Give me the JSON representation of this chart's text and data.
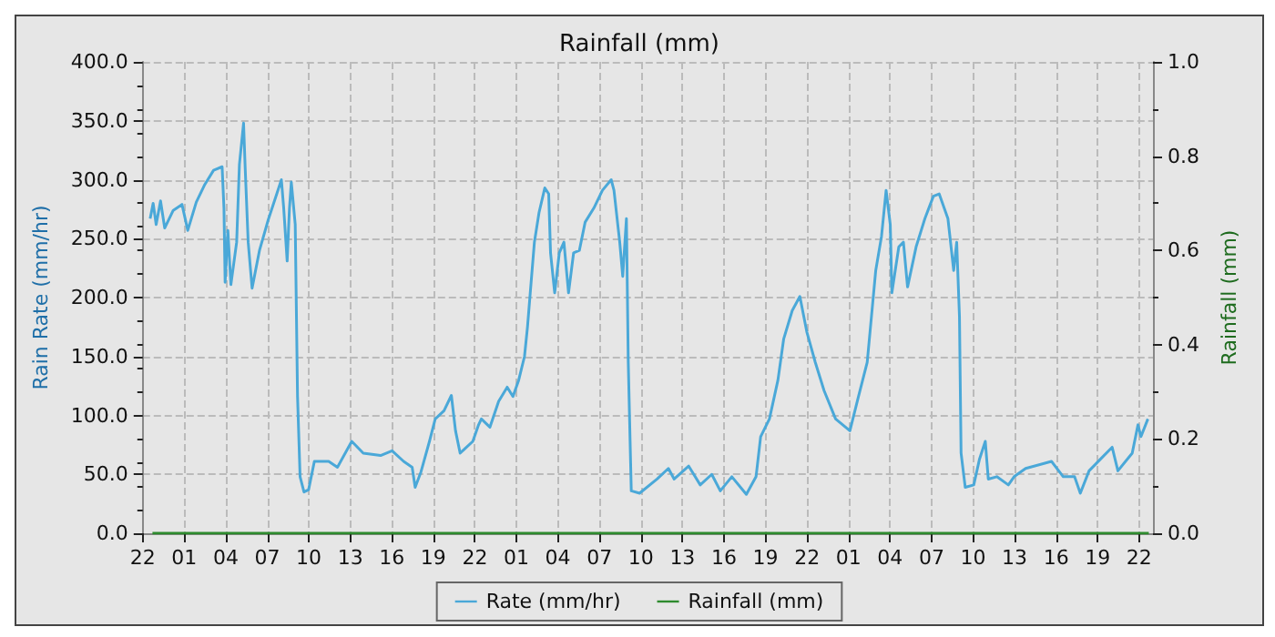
{
  "chart_data": {
    "type": "line",
    "title": "Rainfall (mm)",
    "ylabel": "Rain Rate (mm/hr)",
    "y2label": "Rainfall (mm)",
    "xlim": [
      "--01-01T22:00",
      "--01-04T23:00"
    ],
    "xticks": [
      {
        "value": "--01-01T22:00",
        "label": "22"
      },
      {
        "value": "--01-02T01:00",
        "label": "01"
      },
      {
        "value": "--01-02T04:00",
        "label": "04"
      },
      {
        "value": "--01-02T07:00",
        "label": "07"
      },
      {
        "value": "--01-02T10:00",
        "label": "10"
      },
      {
        "value": "--01-02T13:00",
        "label": "13"
      },
      {
        "value": "--01-02T16:00",
        "label": "16"
      },
      {
        "value": "--01-02T19:00",
        "label": "19"
      },
      {
        "value": "--01-02T22:00",
        "label": "22"
      },
      {
        "value": "--01-03T01:00",
        "label": "01"
      },
      {
        "value": "--01-03T04:00",
        "label": "04"
      },
      {
        "value": "--01-03T07:00",
        "label": "07"
      },
      {
        "value": "--01-03T10:00",
        "label": "10"
      },
      {
        "value": "--01-03T13:00",
        "label": "13"
      },
      {
        "value": "--01-03T16:00",
        "label": "16"
      },
      {
        "value": "--01-03T19:00",
        "label": "19"
      },
      {
        "value": "--01-03T22:00",
        "label": "22"
      },
      {
        "value": "--01-04T01:00",
        "label": "01"
      },
      {
        "value": "--01-04T04:00",
        "label": "04"
      },
      {
        "value": "--01-04T07:00",
        "label": "07"
      },
      {
        "value": "--01-04T10:00",
        "label": "10"
      },
      {
        "value": "--01-04T13:00",
        "label": "13"
      },
      {
        "value": "--01-04T16:00",
        "label": "16"
      },
      {
        "value": "--01-04T19:00",
        "label": "19"
      },
      {
        "value": "--01-04T22:00",
        "label": "22"
      }
    ],
    "ylim": [
      0,
      400
    ],
    "yticks": [
      {
        "value": 0,
        "label": "0.0"
      },
      {
        "value": 50,
        "label": "50.0"
      },
      {
        "value": 100,
        "label": "100.0"
      },
      {
        "value": 150,
        "label": "150.0"
      },
      {
        "value": 200,
        "label": "200.0"
      },
      {
        "value": 250,
        "label": "250.0"
      },
      {
        "value": 300,
        "label": "300.0"
      },
      {
        "value": 350,
        "label": "350.0"
      },
      {
        "value": 400,
        "label": "400.0"
      }
    ],
    "y2lim": [
      0,
      1
    ],
    "y2ticks": [
      {
        "value": 0,
        "label": "0.0"
      },
      {
        "value": 0.2,
        "label": "0.2"
      },
      {
        "value": 0.4,
        "label": "0.4"
      },
      {
        "value": 0.6,
        "label": "0.6"
      },
      {
        "value": 0.8,
        "label": "0.8"
      },
      {
        "value": 1,
        "label": "1.0"
      }
    ],
    "grid": true,
    "legend": "bottom",
    "marker": "none",
    "line_style": "solid",
    "series": [
      {
        "name": "Rate (mm/hr)",
        "color": "#4aa8d8",
        "x": [
          "--01-01T22:32",
          "--01-01T22:45",
          "--01-01T22:58",
          "--01-01T23:17",
          "--01-01T23:35",
          "--01-02T00:12",
          "--01-02T00:50",
          "--01-02T01:15",
          "--01-02T01:52",
          "--01-02T02:29",
          "--01-02T03:07",
          "--01-02T03:44",
          "--01-02T03:52",
          "--01-02T03:57",
          "--01-02T04:09",
          "--01-02T04:22",
          "--01-02T04:47",
          "--01-02T04:59",
          "--01-02T05:17",
          "--01-02T05:24",
          "--01-02T05:37",
          "--01-02T05:54",
          "--01-02T06:26",
          "--01-02T07:04",
          "--01-02T07:41",
          "--01-02T08:01",
          "--01-02T08:11",
          "--01-02T08:26",
          "--01-02T08:36",
          "--01-02T08:44",
          "--01-02T09:01",
          "--01-02T09:11",
          "--01-02T09:22",
          "--01-02T09:39",
          "--01-02T09:59",
          "--01-02T10:24",
          "--01-02T11:26",
          "--01-02T12:04",
          "--01-02T13:06",
          "--01-02T13:56",
          "--01-02T15:11",
          "--01-02T16:01",
          "--01-02T16:51",
          "--01-02T17:28",
          "--01-02T17:41",
          "--01-02T18:06",
          "--01-02T18:43",
          "--01-02T19:08",
          "--01-02T19:46",
          "--01-02T20:18",
          "--01-02T20:36",
          "--01-02T20:56",
          "--01-02T21:51",
          "--01-02T22:16",
          "--01-02T22:28",
          "--01-02T23:05",
          "--01-02T23:43",
          "--01-03T00:20",
          "--01-03T00:45",
          "--01-03T01:10",
          "--01-03T01:35",
          "--01-03T01:48",
          "--01-03T02:00",
          "--01-03T02:18",
          "--01-03T02:38",
          "--01-03T03:03",
          "--01-03T03:20",
          "--01-03T03:28",
          "--01-03T03:46",
          "--01-03T04:06",
          "--01-03T04:26",
          "--01-03T04:46",
          "--01-03T05:08",
          "--01-03T05:33",
          "--01-03T05:58",
          "--01-03T06:36",
          "--01-03T07:13",
          "--01-03T07:51",
          "--01-03T08:03",
          "--01-03T08:28",
          "--01-03T08:41",
          "--01-03T08:57",
          "--01-03T09:05",
          "--01-03T09:18",
          "--01-03T09:54",
          "--01-03T11:10",
          "--01-03T11:59",
          "--01-03T12:24",
          "--01-03T13:27",
          "--01-03T14:17",
          "--01-03T15:07",
          "--01-03T15:44",
          "--01-03T16:34",
          "--01-03T17:37",
          "--01-03T18:19",
          "--01-03T18:39",
          "--01-03T19:17",
          "--01-03T19:54",
          "--01-03T20:19",
          "--01-03T20:56",
          "--01-03T21:29",
          "--01-03T21:59",
          "--01-03T22:36",
          "--01-03T23:14",
          "--01-04T00:04",
          "--01-04T01:06",
          "--01-04T01:43",
          "--01-04T02:21",
          "--01-04T02:58",
          "--01-04T03:23",
          "--01-04T03:43",
          "--01-04T04:01",
          "--01-04T04:08",
          "--01-04T04:38",
          "--01-04T04:58",
          "--01-04T05:16",
          "--01-04T05:53",
          "--01-04T06:31",
          "--01-04T07:08",
          "--01-04T07:33",
          "--01-04T08:11",
          "--01-04T08:36",
          "--01-04T08:49",
          "--01-04T09:01",
          "--01-04T09:08",
          "--01-04T09:26",
          "--01-04T10:03",
          "--01-04T10:28",
          "--01-04T10:53",
          "--01-04T11:06",
          "--01-04T11:43",
          "--01-04T12:33",
          "--01-04T12:58",
          "--01-04T13:48",
          "--01-04T15:40",
          "--01-04T16:31",
          "--01-04T17:20",
          "--01-04T17:45",
          "--01-04T18:23",
          "--01-04T19:13",
          "--01-04T20:03",
          "--01-04T20:28",
          "--01-04T21:30",
          "--01-04T21:55",
          "--01-04T22:08",
          "--01-04T22:38"
        ],
        "values": [
          267,
          280,
          262,
          282,
          259,
          274,
          279,
          257,
          281,
          296,
          308,
          311,
          276,
          213,
          257,
          211,
          247,
          313,
          348,
          310,
          247,
          208,
          240,
          266,
          288,
          300,
          276,
          231,
          276,
          298,
          262,
          116,
          48,
          35,
          37,
          61,
          61,
          56,
          78,
          68,
          66,
          70,
          61,
          56,
          39,
          52,
          78,
          97,
          104,
          117,
          87,
          68,
          78,
          92,
          97,
          90,
          112,
          124,
          116,
          130,
          150,
          175,
          204,
          247,
          272,
          293,
          288,
          238,
          204,
          238,
          247,
          204,
          238,
          240,
          264,
          276,
          291,
          300,
          291,
          247,
          218,
          267,
          145,
          36,
          34,
          46,
          55,
          46,
          57,
          41,
          50,
          36,
          48,
          33,
          48,
          82,
          97,
          130,
          165,
          189,
          201,
          171,
          145,
          121,
          97,
          87,
          116,
          145,
          223,
          252,
          291,
          262,
          204,
          243,
          247,
          209,
          243,
          267,
          286,
          288,
          267,
          223,
          247,
          184,
          68,
          39,
          41,
          63,
          78,
          46,
          48,
          41,
          48,
          55,
          61,
          48,
          48,
          34,
          53,
          63,
          73,
          53,
          68,
          92,
          82,
          97
        ]
      },
      {
        "name": "Rainfall (mm)",
        "type": "line",
        "axis": "y2",
        "color": "#2e8b2e",
        "x": [
          "--01-01T22:42",
          "--01-04T22:42"
        ],
        "values": [
          0,
          0
        ]
      }
    ]
  }
}
